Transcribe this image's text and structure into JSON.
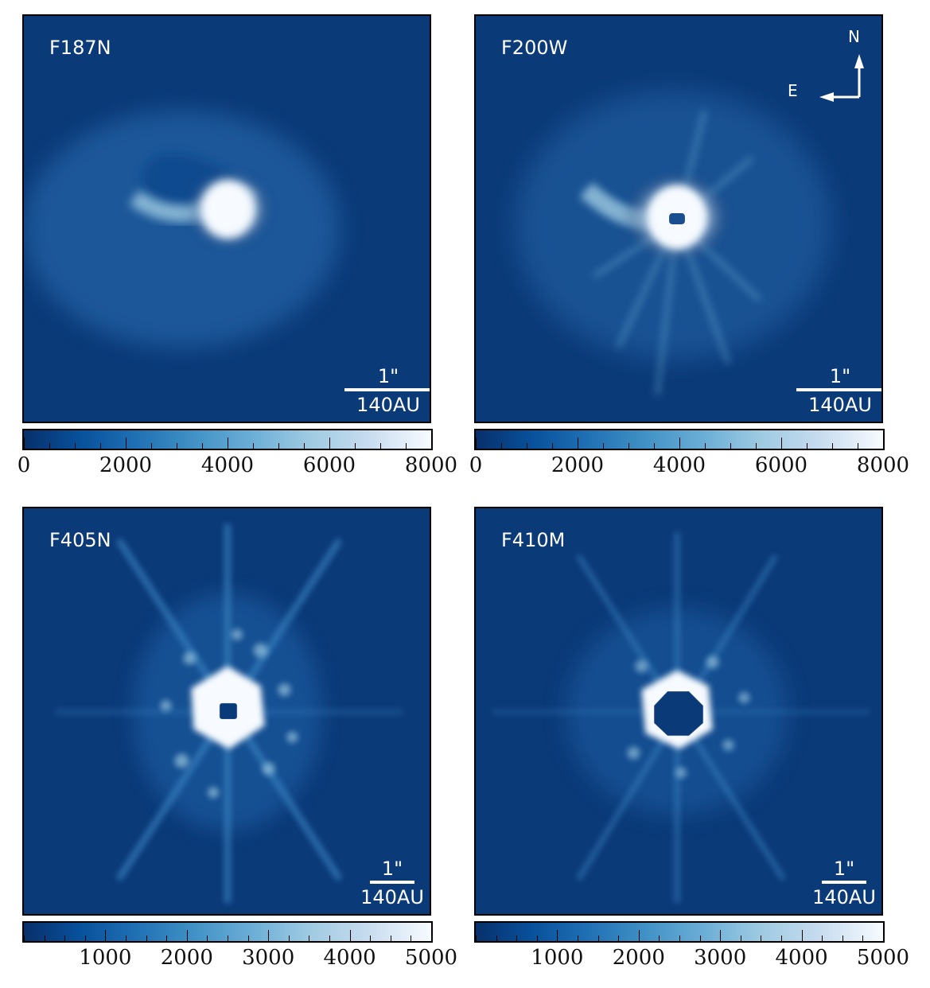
{
  "panels": [
    {
      "filter": "F187N",
      "scale_arcsec": "1\"",
      "scale_au": "140AU"
    },
    {
      "filter": "F200W",
      "scale_arcsec": "1\"",
      "scale_au": "140AU",
      "compass": {
        "north": "N",
        "east": "E"
      }
    },
    {
      "filter": "F405N",
      "scale_arcsec": "1\"",
      "scale_au": "140AU"
    },
    {
      "filter": "F410M",
      "scale_arcsec": "1\"",
      "scale_au": "140AU"
    }
  ],
  "colorbars": [
    {
      "range": [
        0,
        8000
      ],
      "labels": [
        "0",
        "2000",
        "4000",
        "6000",
        "8000"
      ],
      "major": [
        0,
        2000,
        4000,
        6000,
        8000
      ],
      "minor_step": 500
    },
    {
      "range": [
        0,
        8000
      ],
      "labels": [
        "0",
        "2000",
        "4000",
        "6000",
        "8000"
      ],
      "major": [
        0,
        2000,
        4000,
        6000,
        8000
      ],
      "minor_step": 500
    },
    {
      "range": [
        0,
        5000
      ],
      "labels": [
        "1000",
        "2000",
        "3000",
        "4000",
        "5000"
      ],
      "major": [
        1000,
        2000,
        3000,
        4000,
        5000
      ],
      "minor_step": 250
    },
    {
      "range": [
        0,
        5000
      ],
      "labels": [
        "1000",
        "2000",
        "3000",
        "4000",
        "5000"
      ],
      "major": [
        1000,
        2000,
        3000,
        4000,
        5000
      ],
      "minor_step": 250
    }
  ],
  "colormap": [
    "#08306b",
    "#08519c",
    "#2171b5",
    "#4292c6",
    "#6baed6",
    "#9ecae1",
    "#c6dbef",
    "#f7fbff"
  ]
}
